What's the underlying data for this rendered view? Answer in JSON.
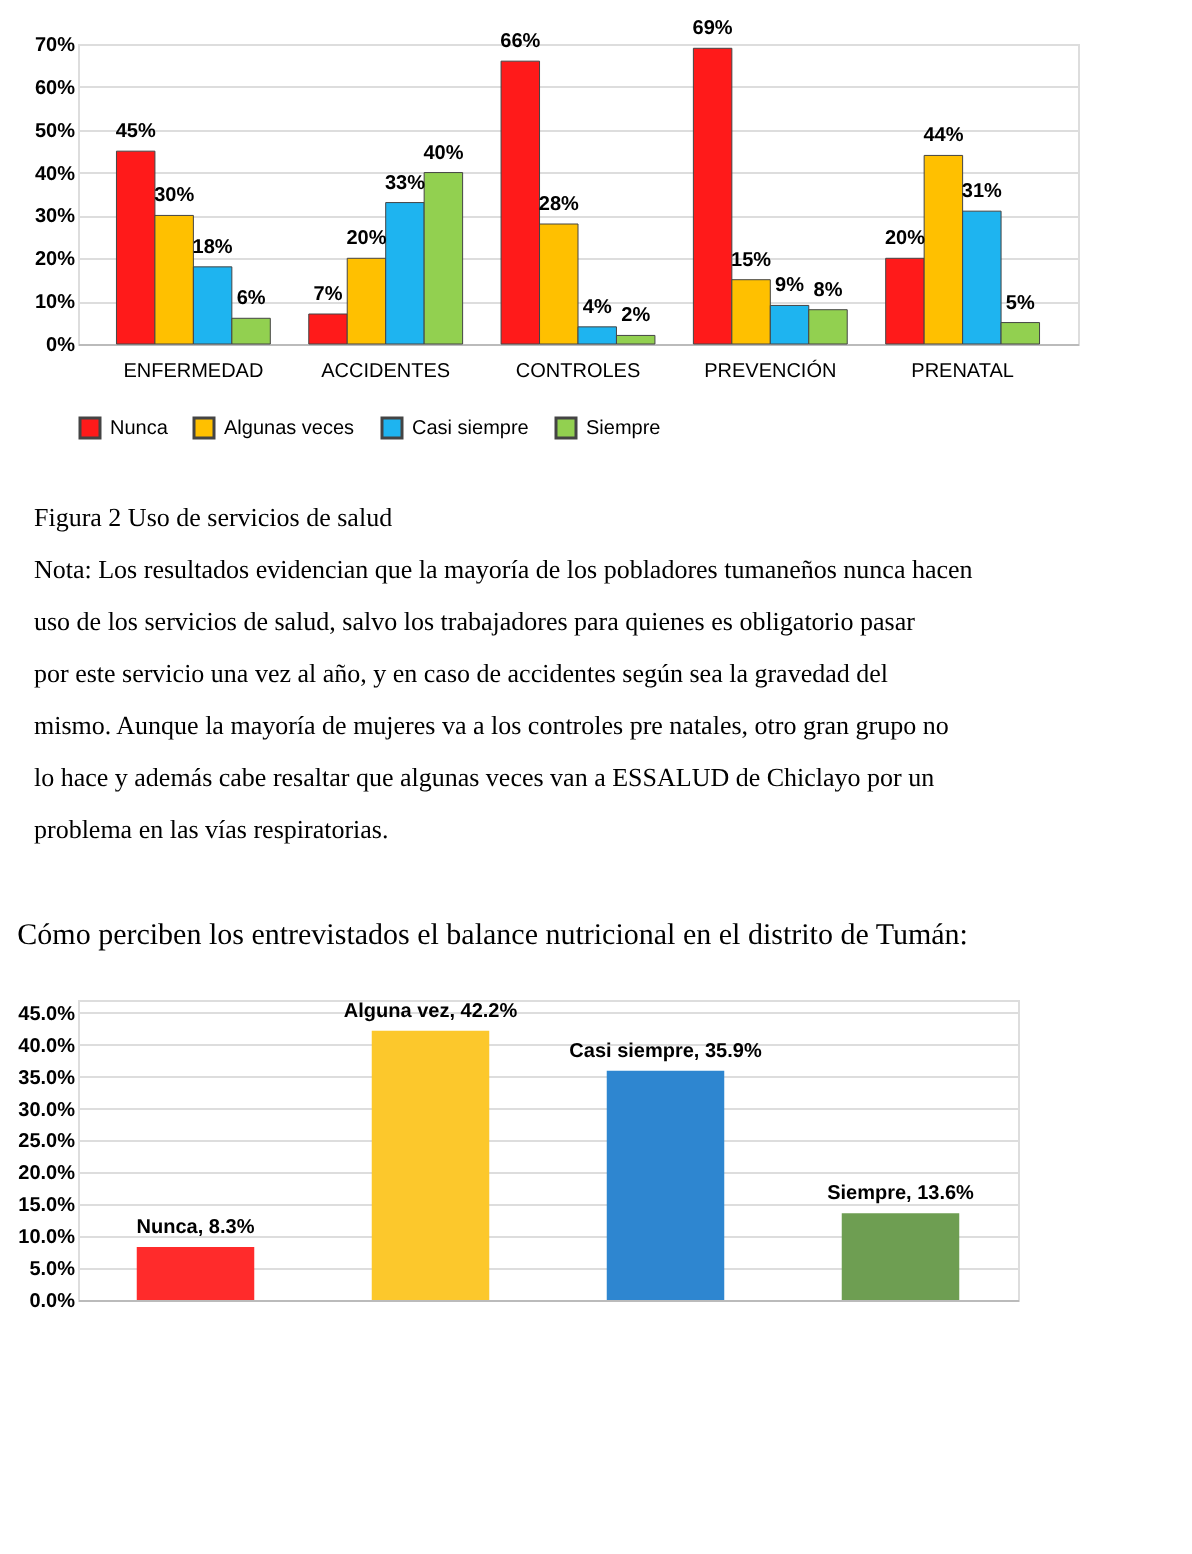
{
  "chart_data": [
    {
      "type": "bar",
      "categories": [
        "ENFERMEDAD",
        "ACCIDENTES",
        "CONTROLES",
        "PREVENCIÓN",
        "PRENATAL"
      ],
      "series": [
        {
          "name": "Nunca",
          "color": "#ff1a1a",
          "values": [
            45,
            7,
            66,
            69,
            20
          ],
          "value_labels": [
            "45%",
            "7%",
            "66%",
            "69%",
            "20%"
          ]
        },
        {
          "name": "Algunas veces",
          "color": "#ffc000",
          "values": [
            30,
            20,
            28,
            15,
            44
          ],
          "value_labels": [
            "30%",
            "20%",
            "28%",
            "15%",
            "44%"
          ]
        },
        {
          "name": "Casi siempre",
          "color": "#1eb4f0",
          "values": [
            18,
            33,
            4,
            9,
            31
          ],
          "value_labels": [
            "18%",
            "33%",
            "4%",
            "9%",
            "31%"
          ]
        },
        {
          "name": "Siempre",
          "color": "#92d050",
          "values": [
            6,
            40,
            2,
            8,
            5
          ],
          "value_labels": [
            "6%",
            "40%",
            "2%",
            "8%",
            "5%"
          ]
        }
      ],
      "ylim": [
        0,
        70
      ],
      "yticks": [
        {
          "value": 0,
          "label": "0%"
        },
        {
          "value": 10,
          "label": "10%"
        },
        {
          "value": 20,
          "label": "20%"
        },
        {
          "value": 30,
          "label": "30%"
        },
        {
          "value": 40,
          "label": "40%"
        },
        {
          "value": 50,
          "label": "50%"
        },
        {
          "value": 60,
          "label": "60%"
        },
        {
          "value": 70,
          "label": "70%"
        }
      ],
      "grid": "y",
      "legend": "bottom",
      "annotations": [
        "Figura 2 Uso de servicios de salud",
        "Nota: Los resultados evidencian que la mayoría de los pobladores tumaneños nunca hacen uso de los servicios de salud, salvo los trabajadores para quienes es obligatorio pasar por este servicio una vez al año, y en caso de accidentes según sea la gravedad del mismo. Aunque la mayoría de mujeres va a los controles pre natales, otro gran grupo no lo hace y además cabe resaltar que algunas veces van a ESSALUD de Chiclayo por un problema en las vías respiratorias."
      ]
    },
    {
      "type": "bar",
      "title": "Cómo perciben los entrevistados el balance nutricional en el distrito de Tumán:",
      "categories": [
        null,
        null,
        null,
        null
      ],
      "values": [
        8.3,
        42.2,
        35.9,
        13.6
      ],
      "colors": [
        "#ff2b2b",
        "#fcc82c",
        "#2e86d0",
        "#6e9e52"
      ],
      "value_labels": [
        "Nunca, 8.3%",
        "Alguna vez, 42.2%",
        "Casi siempre, 35.9%",
        "Siempre, 13.6%"
      ],
      "ylim": [
        0,
        47
      ],
      "yticks": [
        {
          "value": 0,
          "label": "0.0%"
        },
        {
          "value": 5,
          "label": "5.0%"
        },
        {
          "value": 10,
          "label": "10.0%"
        },
        {
          "value": 15,
          "label": "15.0%"
        },
        {
          "value": 20,
          "label": "20.0%"
        },
        {
          "value": 25,
          "label": "25.0%"
        },
        {
          "value": 30,
          "label": "30.0%"
        },
        {
          "value": 35,
          "label": "35.0%"
        },
        {
          "value": 40,
          "label": "40.0%"
        },
        {
          "value": 45,
          "label": "45.0%"
        }
      ],
      "grid": "y",
      "tick_labels": "y"
    }
  ]
}
